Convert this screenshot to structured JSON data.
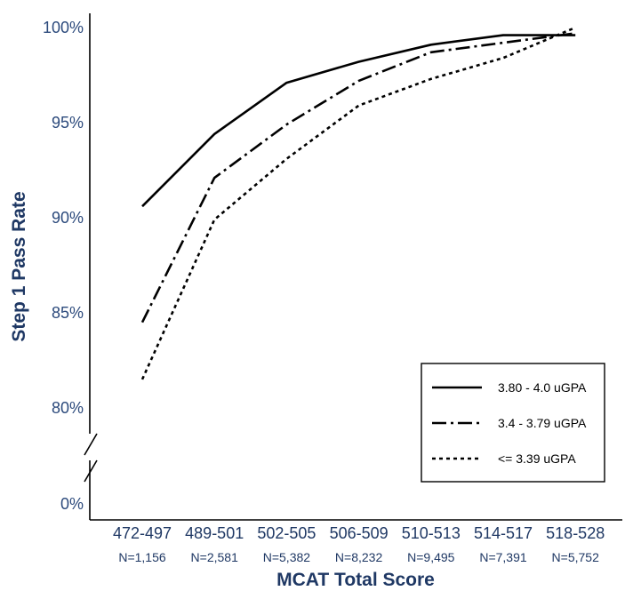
{
  "chart_data": {
    "type": "line",
    "xlabel": "MCAT Total Score",
    "ylabel": "Step 1 Pass Rate",
    "categories": [
      "472-497",
      "489-501",
      "502-505",
      "506-509",
      "510-513",
      "514-517",
      "518-528"
    ],
    "category_counts": [
      "N=1,156",
      "N=2,581",
      "N=5,382",
      "N=8,232",
      "N=9,495",
      "N=7,391",
      "N=5,752"
    ],
    "y_tick_labels": [
      "0%",
      "80%",
      "85%",
      "90%",
      "95%",
      "100%"
    ],
    "ylim": [
      80,
      100
    ],
    "y_axis_break": true,
    "grid": false,
    "legend_position": "bottom-right",
    "series": [
      {
        "name": "3.80 - 4.0 uGPA",
        "line_style": "solid",
        "color": "#000000",
        "values": [
          90.6,
          94.4,
          97.1,
          98.2,
          99.1,
          99.6,
          99.6
        ]
      },
      {
        "name": "3.4 - 3.79 uGPA",
        "line_style": "dash-dot",
        "color": "#000000",
        "values": [
          84.5,
          92.1,
          94.9,
          97.2,
          98.7,
          99.2,
          99.7
        ]
      },
      {
        "name": "<= 3.39 uGPA",
        "line_style": "dotted",
        "color": "#000000",
        "values": [
          81.5,
          89.9,
          93.1,
          95.9,
          97.3,
          98.4,
          100.0
        ]
      }
    ]
  }
}
